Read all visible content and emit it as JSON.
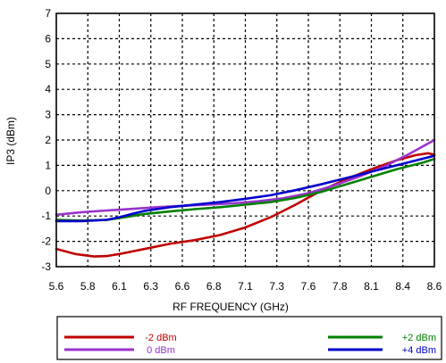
{
  "chart_data": {
    "type": "line",
    "title": "",
    "xlabel": "RF FREQUENCY (GHz)",
    "ylabel": "IP3 (dBm)",
    "xlim": [
      5.6,
      8.6
    ],
    "ylim": [
      -3,
      7
    ],
    "x_ticks": [
      "5.6",
      "5.8",
      "6.1",
      "6.3",
      "6.6",
      "6.8",
      "7.1",
      "7.3",
      "7.6",
      "7.8",
      "8.1",
      "8.4",
      "8.6"
    ],
    "y_ticks": [
      "7",
      "6",
      "5",
      "4",
      "3",
      "2",
      "1",
      "0",
      "-1",
      "-2",
      "-3"
    ],
    "grid": true,
    "legend_position": "bottom",
    "series": [
      {
        "name": "-2 dBm",
        "color": "#c00000",
        "x": [
          5.6,
          5.75,
          5.9,
          6.0,
          6.1,
          6.2,
          6.35,
          6.5,
          6.7,
          6.9,
          7.1,
          7.3,
          7.5,
          7.7,
          7.9,
          8.1,
          8.3,
          8.45,
          8.55,
          8.6
        ],
        "y": [
          -2.3,
          -2.5,
          -2.6,
          -2.58,
          -2.5,
          -2.4,
          -2.25,
          -2.1,
          -1.95,
          -1.75,
          -1.45,
          -1.05,
          -0.55,
          0.0,
          0.45,
          0.85,
          1.2,
          1.4,
          1.48,
          1.42
        ]
      },
      {
        "name": "0 dBm",
        "color": "#9933cc",
        "x": [
          5.6,
          5.8,
          6.0,
          6.2,
          6.4,
          6.6,
          6.8,
          7.0,
          7.2,
          7.4,
          7.6,
          7.8,
          8.0,
          8.2,
          8.4,
          8.6
        ],
        "y": [
          -0.95,
          -0.85,
          -0.78,
          -0.72,
          -0.65,
          -0.6,
          -0.55,
          -0.5,
          -0.42,
          -0.3,
          -0.1,
          0.2,
          0.55,
          0.95,
          1.45,
          2.0
        ]
      },
      {
        "name": "+2 dBm",
        "color": "#008000",
        "x": [
          5.6,
          5.8,
          6.0,
          6.1,
          6.2,
          6.3,
          6.5,
          6.7,
          6.9,
          7.1,
          7.3,
          7.5,
          7.7,
          7.9,
          8.1,
          8.3,
          8.5,
          8.6
        ],
        "y": [
          -1.15,
          -1.18,
          -1.15,
          -1.08,
          -1.0,
          -0.92,
          -0.82,
          -0.73,
          -0.65,
          -0.55,
          -0.45,
          -0.28,
          -0.05,
          0.25,
          0.55,
          0.85,
          1.1,
          1.25
        ]
      },
      {
        "name": "+4 dBm",
        "color": "#0000cc",
        "x": [
          5.6,
          5.8,
          6.0,
          6.1,
          6.2,
          6.3,
          6.5,
          6.7,
          6.9,
          7.1,
          7.3,
          7.5,
          7.7,
          7.9,
          8.1,
          8.3,
          8.5,
          8.6
        ],
        "y": [
          -1.2,
          -1.2,
          -1.15,
          -1.05,
          -0.92,
          -0.8,
          -0.65,
          -0.55,
          -0.45,
          -0.32,
          -0.18,
          0.02,
          0.25,
          0.5,
          0.75,
          1.0,
          1.25,
          1.38
        ]
      }
    ]
  }
}
